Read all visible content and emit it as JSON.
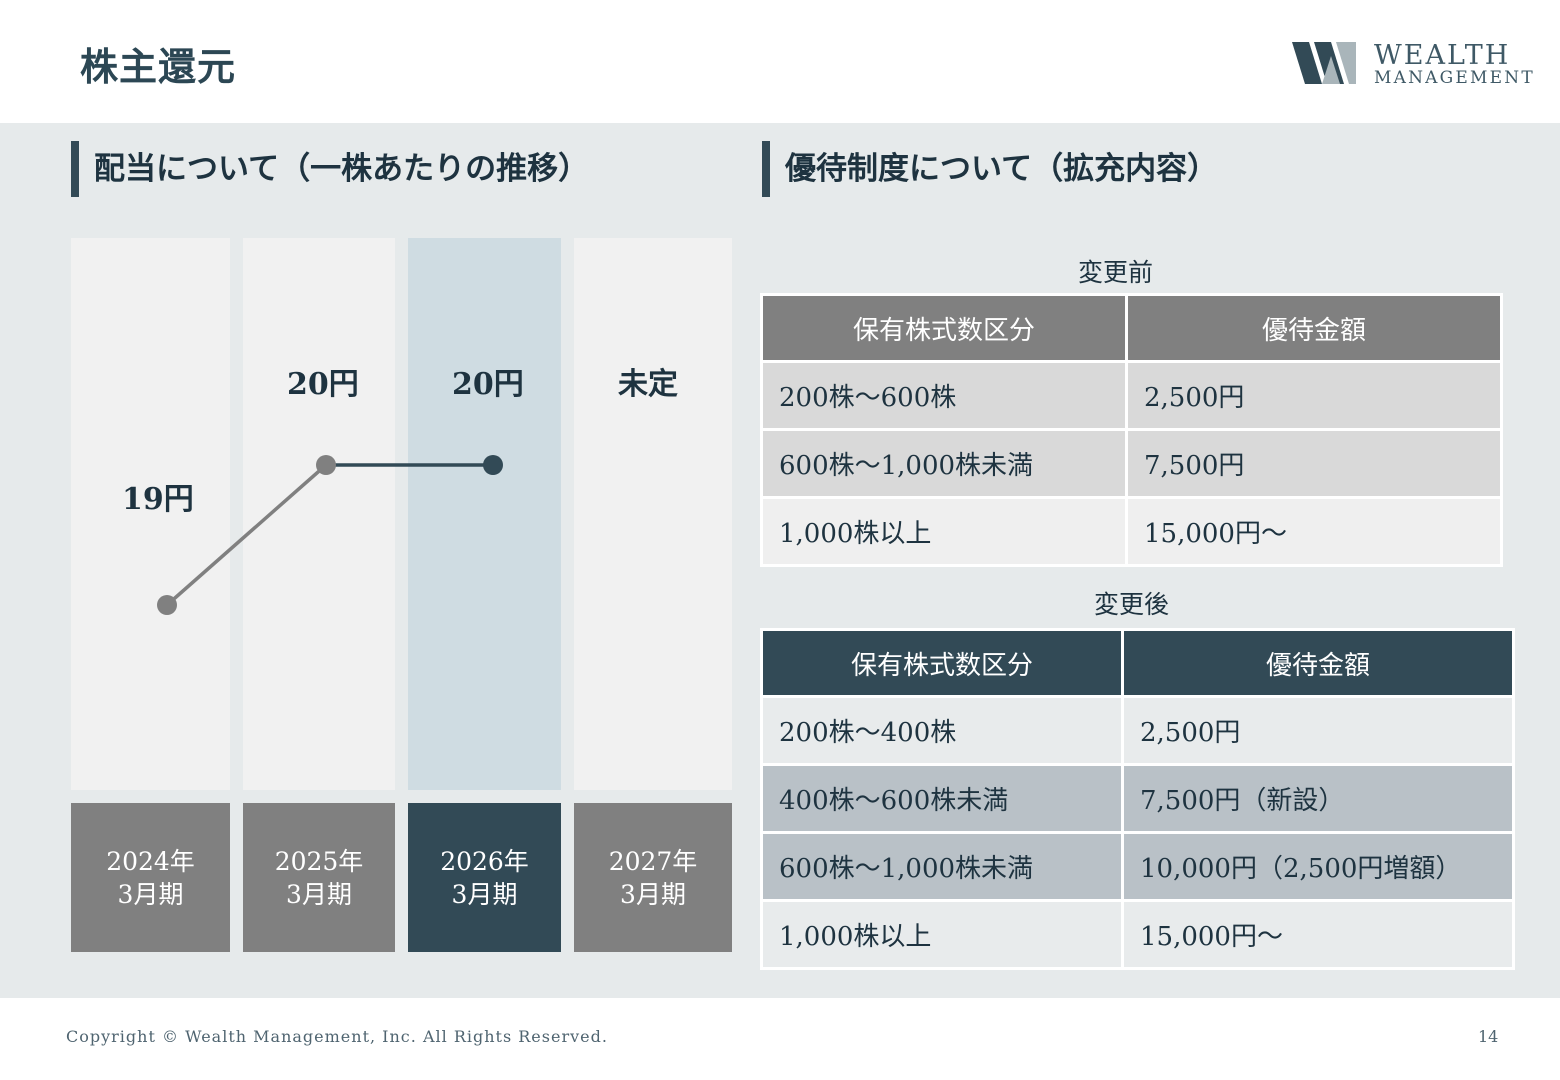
{
  "page_title": "株主還元",
  "logo": {
    "line1": "WEALTH",
    "line2": "MANAGEMENT"
  },
  "dividend": {
    "title": "配当について（一株あたりの推移）",
    "periods": [
      {
        "year": "2024年",
        "term": "3月期",
        "value_label": "19円",
        "value": 19
      },
      {
        "year": "2025年",
        "term": "3月期",
        "value_label": "20円",
        "value": 20
      },
      {
        "year": "2026年",
        "term": "3月期",
        "value_label": "20円",
        "value": 20,
        "highlight": true
      },
      {
        "year": "2027年",
        "term": "3月期",
        "value_label": "未定",
        "value": null
      }
    ]
  },
  "chart_data": {
    "type": "line",
    "categories": [
      "2024年3月期",
      "2025年3月期",
      "2026年3月期",
      "2027年3月期"
    ],
    "series": [
      {
        "values": [
          19,
          20,
          20,
          null
        ]
      }
    ],
    "data_labels": [
      "19円",
      "20円",
      "20円",
      "未定"
    ],
    "title": "",
    "xlabel": "",
    "ylabel": "",
    "grid": false
  },
  "benefit": {
    "title": "優待制度について（拡充内容）",
    "before": {
      "caption": "変更前",
      "headers": [
        "保有株式数区分",
        "優待金額"
      ],
      "rows": [
        [
          "200株～600株",
          "2,500円"
        ],
        [
          "600株～1,000株未満",
          "7,500円"
        ],
        [
          "1,000株以上",
          "15,000円～"
        ]
      ]
    },
    "after": {
      "caption": "変更後",
      "headers": [
        "保有株式数区分",
        "優待金額"
      ],
      "rows": [
        [
          "200株～400株",
          "2,500円"
        ],
        [
          "400株～600株未満",
          "7,500円（新設）"
        ],
        [
          "600株～1,000株未満",
          "10,000円（2,500円増額）"
        ],
        [
          "1,000株以上",
          "15,000円～"
        ]
      ]
    }
  },
  "colors": {
    "accent_dark": "#324a56",
    "header_gray": "#808080",
    "column_highlight": "#cfdce2",
    "band": "#e6eaeb"
  },
  "footer": {
    "copyright": "Copyright © Wealth Management, Inc. All Rights Reserved.",
    "page_number": "14"
  }
}
